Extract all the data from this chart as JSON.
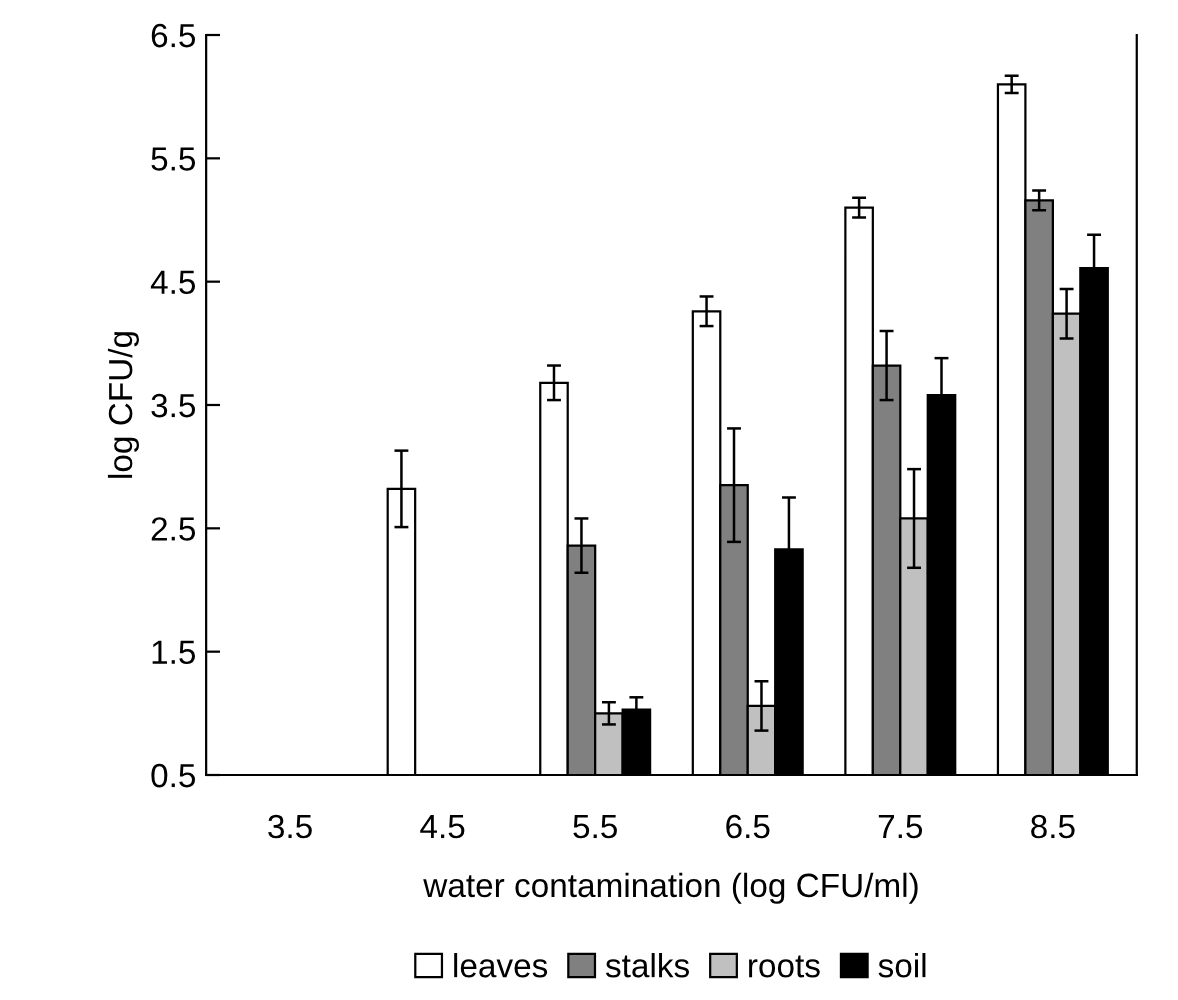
{
  "chart_data": {
    "type": "bar",
    "xlabel": "water contamination (log CFU/ml)",
    "ylabel": "log CFU/g",
    "categories": [
      "3.5",
      "4.5",
      "5.5",
      "6.5",
      "7.5",
      "8.5"
    ],
    "series": [
      {
        "name": "leaves",
        "color": "#ffffff",
        "values": [
          null,
          2.82,
          3.68,
          4.26,
          5.1,
          6.1
        ],
        "errors": [
          null,
          0.31,
          0.14,
          0.12,
          0.08,
          0.07
        ]
      },
      {
        "name": "stalks",
        "color": "#808080",
        "values": [
          null,
          null,
          2.36,
          2.85,
          3.82,
          5.16
        ],
        "errors": [
          null,
          null,
          0.22,
          0.46,
          0.28,
          0.08
        ]
      },
      {
        "name": "roots",
        "color": "#c0c0c0",
        "values": [
          null,
          null,
          1.0,
          1.06,
          2.58,
          4.24
        ],
        "errors": [
          null,
          null,
          0.09,
          0.2,
          0.4,
          0.2
        ]
      },
      {
        "name": "soil",
        "color": "#000000",
        "values": [
          null,
          null,
          1.03,
          2.33,
          3.58,
          4.61
        ],
        "errors": [
          null,
          null,
          0.1,
          0.42,
          0.3,
          0.27
        ]
      }
    ],
    "ylim": [
      0.5,
      6.5
    ],
    "yticks": [
      0.5,
      1.5,
      2.5,
      3.5,
      4.5,
      5.5,
      6.5
    ],
    "grid": false,
    "legend": "bottom"
  }
}
